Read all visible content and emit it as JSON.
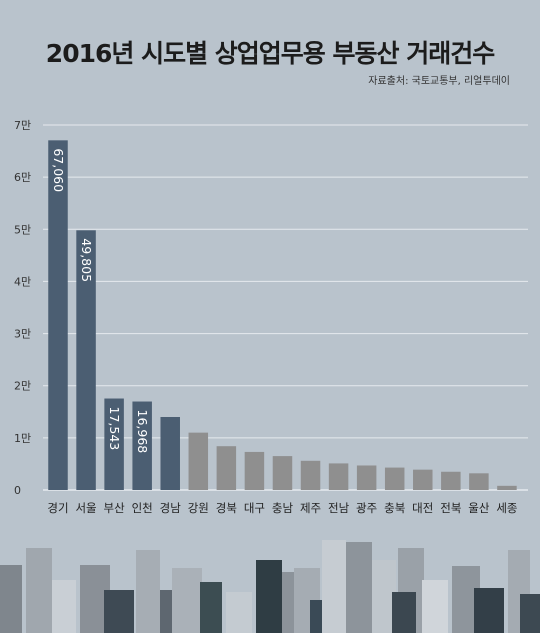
{
  "title": "2016년 시도별 상업업무용 부동산 거래건수",
  "source": "자료출처: 국토교통부, 리얼투데이",
  "colors": {
    "highlight": "#4b5e72",
    "normal": "#8f8f8f",
    "background": "#b9c3cc",
    "grid": "#e6eaee"
  },
  "chart_data": {
    "type": "bar",
    "title": "2016년 시도별 상업업무용 부동산 거래건수",
    "xlabel": "",
    "ylabel": "",
    "ylim": [
      0,
      70000
    ],
    "yticks": [
      0,
      10000,
      20000,
      30000,
      40000,
      50000,
      60000,
      70000
    ],
    "ytick_labels": [
      "0",
      "1만",
      "2만",
      "3만",
      "4만",
      "5만",
      "6만",
      "7만"
    ],
    "grid": true,
    "categories": [
      "경기",
      "서울",
      "부산",
      "인천",
      "경남",
      "강원",
      "경북",
      "대구",
      "충남",
      "제주",
      "전남",
      "광주",
      "충북",
      "대전",
      "전북",
      "울산",
      "세종"
    ],
    "values": [
      67060,
      49805,
      17543,
      16968,
      14000,
      11000,
      8400,
      7300,
      6500,
      5600,
      5100,
      4700,
      4300,
      3900,
      3500,
      3200,
      800
    ],
    "data_labels": [
      "67,060",
      "49,805",
      "17,543",
      "16,968",
      "",
      "",
      "",
      "",
      "",
      "",
      "",
      "",
      "",
      "",
      "",
      "",
      ""
    ],
    "highlighted_count": 5
  }
}
